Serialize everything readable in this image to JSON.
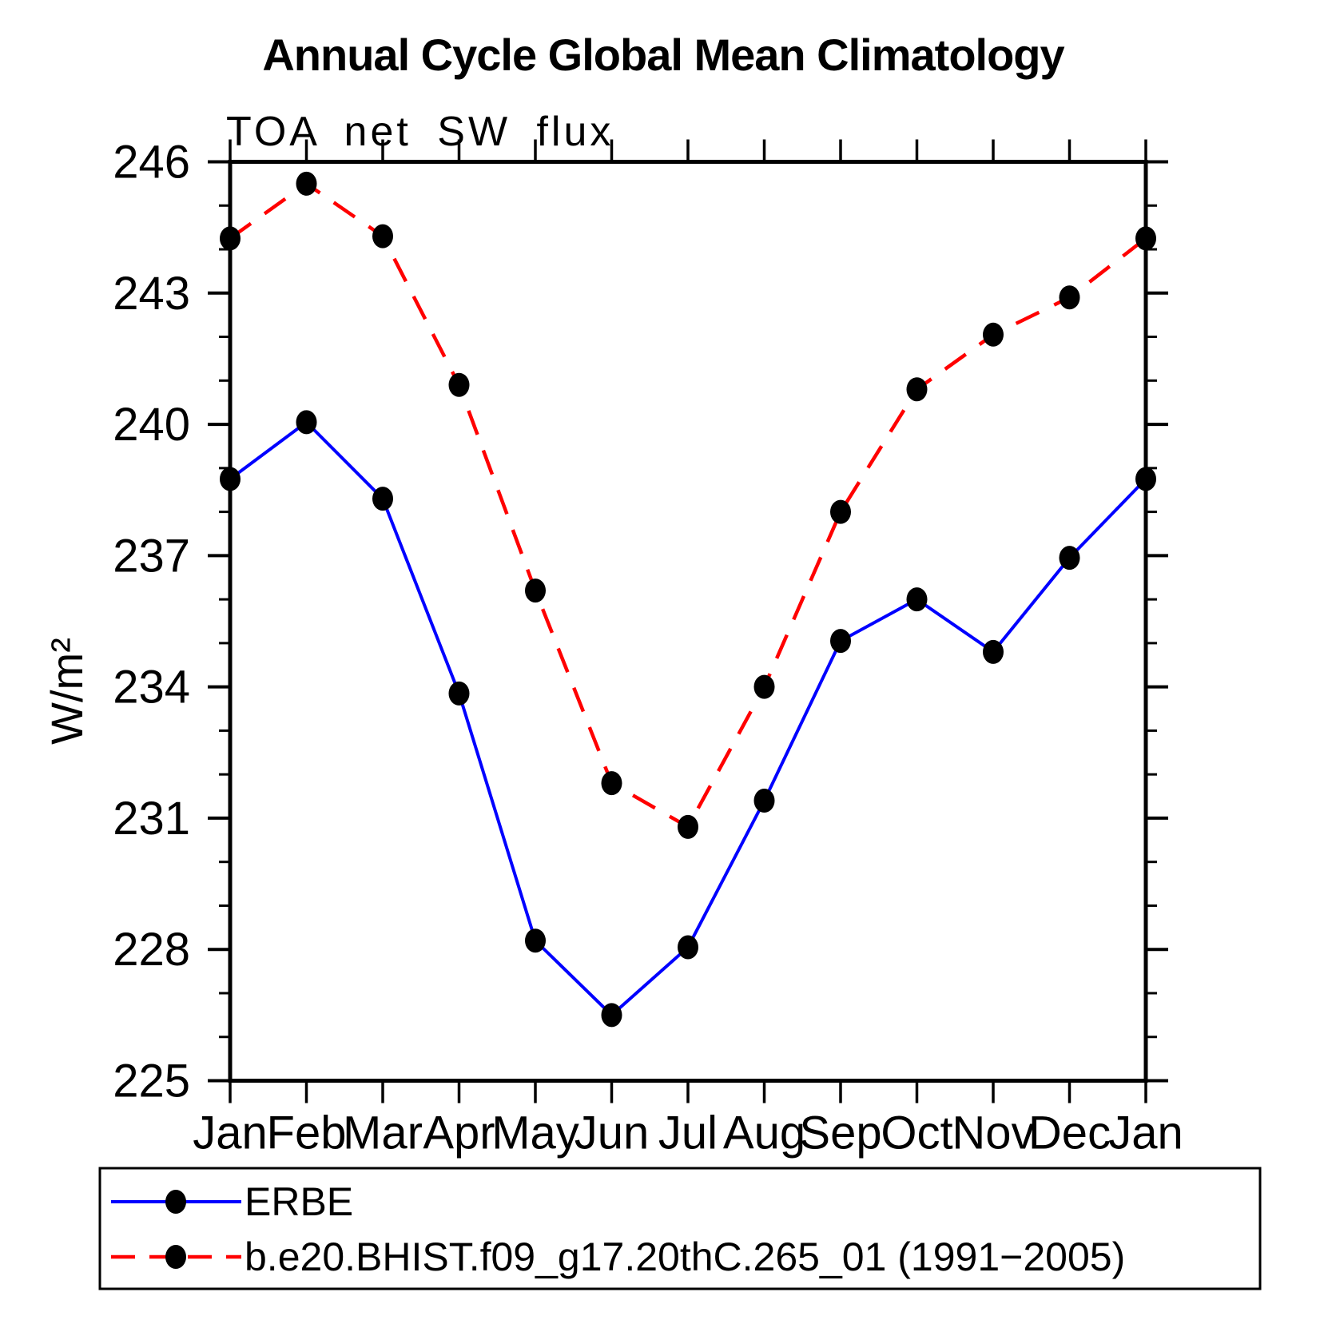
{
  "chart_data": {
    "type": "line",
    "title": "Annual Cycle Global Mean Climatology",
    "subtitle": "TOA net SW flux",
    "ylabel": "W/m²",
    "x_categories": [
      "Jan",
      "Feb",
      "Mar",
      "Apr",
      "May",
      "Jun",
      "Jul",
      "Aug",
      "Sep",
      "Oct",
      "Nov",
      "Dec",
      "Jan"
    ],
    "ylim": [
      225,
      246
    ],
    "ytick_major": [
      225,
      228,
      231,
      234,
      237,
      240,
      243,
      246
    ],
    "ytick_minor_step": 1,
    "grid": false,
    "legend_position": "bottom",
    "axis_color": "#000000",
    "marker_color": "#000000",
    "series": [
      {
        "name": "ERBE",
        "color": "#0000ff",
        "line_style": "solid",
        "values": [
          238.75,
          240.05,
          238.3,
          233.85,
          228.2,
          226.5,
          228.05,
          231.4,
          235.05,
          236.0,
          234.8,
          236.95,
          238.75
        ]
      },
      {
        "name": "b.e20.BHIST.f09_g17.20thC.265_01 (1991−2005)",
        "color": "#ff0000",
        "line_style": "dashed",
        "values": [
          244.25,
          245.5,
          244.3,
          240.9,
          236.2,
          231.8,
          230.8,
          234.0,
          238.0,
          240.8,
          242.05,
          242.9,
          244.25
        ]
      }
    ]
  }
}
